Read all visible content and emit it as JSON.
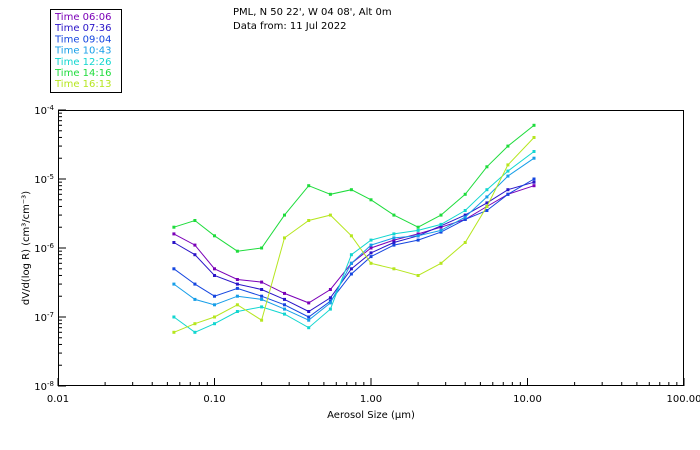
{
  "header": {
    "line1": "PML, N 50 22', W 04 08', Alt 0m",
    "line2": "Data from: 11 Jul 2022"
  },
  "legend": [
    {
      "label": "Time 06:06",
      "color": "#7b00b8"
    },
    {
      "label": "Time 07:36",
      "color": "#2a14c8"
    },
    {
      "label": "Time 09:04",
      "color": "#1546e0"
    },
    {
      "label": "Time 10:43",
      "color": "#169ee8"
    },
    {
      "label": "Time 12:26",
      "color": "#12d6d0"
    },
    {
      "label": "Time 14:16",
      "color": "#1edc3c"
    },
    {
      "label": "Time 16:13",
      "color": "#b6e61e"
    }
  ],
  "chart_data": {
    "type": "line",
    "xscale": "log",
    "yscale": "log",
    "xlim": [
      0.01,
      100
    ],
    "ylim": [
      1e-08,
      0.0001
    ],
    "xlabel": "Aerosol Size (µm)",
    "ylabel": "dV/d(log R) (cm³/cm⁻³)",
    "xticks": [
      {
        "value": 0.01,
        "label": "0.01"
      },
      {
        "value": 0.1,
        "label": "0.10"
      },
      {
        "value": 1,
        "label": "1.00"
      },
      {
        "value": 10,
        "label": "10.00"
      },
      {
        "value": 100,
        "label": "100.00"
      }
    ],
    "yticks": [
      {
        "value": 0.0001,
        "base": "10",
        "exp": "-4"
      },
      {
        "value": 1e-05,
        "base": "10",
        "exp": "-5"
      },
      {
        "value": 1e-06,
        "base": "10",
        "exp": "-6"
      },
      {
        "value": 1e-07,
        "base": "10",
        "exp": "-7"
      },
      {
        "value": 1e-08,
        "base": "10",
        "exp": "-8"
      }
    ],
    "x": [
      0.055,
      0.075,
      0.1,
      0.14,
      0.2,
      0.28,
      0.4,
      0.55,
      0.75,
      1.0,
      1.4,
      2.0,
      2.8,
      4.0,
      5.5,
      7.5,
      11.0
    ],
    "series": [
      {
        "name": "Time 06:06",
        "values": [
          1.6e-06,
          1.1e-06,
          5e-07,
          3.5e-07,
          3.2e-07,
          2.2e-07,
          1.6e-07,
          2.5e-07,
          6e-07,
          1e-06,
          1.3e-06,
          1.6e-06,
          2e-06,
          2.6e-06,
          4e-06,
          6e-06,
          8e-06
        ]
      },
      {
        "name": "Time 07:36",
        "values": [
          1.2e-06,
          8e-07,
          4e-07,
          3e-07,
          2.5e-07,
          1.8e-07,
          1.2e-07,
          1.9e-07,
          5e-07,
          8.5e-07,
          1.2e-06,
          1.5e-06,
          2.1e-06,
          3e-06,
          4.5e-06,
          7e-06,
          9e-06
        ]
      },
      {
        "name": "Time 09:04",
        "values": [
          5e-07,
          3e-07,
          2e-07,
          2.6e-07,
          2e-07,
          1.5e-07,
          1e-07,
          1.7e-07,
          4.2e-07,
          7.5e-07,
          1.1e-06,
          1.3e-06,
          1.7e-06,
          2.6e-06,
          3.5e-06,
          6e-06,
          1e-05
        ]
      },
      {
        "name": "Time 10:43",
        "values": [
          3e-07,
          1.8e-07,
          1.5e-07,
          2e-07,
          1.8e-07,
          1.3e-07,
          9e-08,
          1.6e-07,
          6e-07,
          1.1e-06,
          1.4e-06,
          1.5e-06,
          1.8e-06,
          2.8e-06,
          5.5e-06,
          1.1e-05,
          2e-05
        ]
      },
      {
        "name": "Time 12:26",
        "values": [
          1e-07,
          6e-08,
          8e-08,
          1.2e-07,
          1.4e-07,
          1.1e-07,
          7e-08,
          1.3e-07,
          8e-07,
          1.3e-06,
          1.6e-06,
          1.8e-06,
          2.2e-06,
          3.5e-06,
          7e-06,
          1.3e-05,
          2.5e-05
        ]
      },
      {
        "name": "Time 14:16",
        "values": [
          2e-06,
          2.5e-06,
          1.5e-06,
          9e-07,
          1e-06,
          3e-06,
          8e-06,
          6e-06,
          7e-06,
          5e-06,
          3e-06,
          2e-06,
          3e-06,
          6e-06,
          1.5e-05,
          3e-05,
          6e-05
        ]
      },
      {
        "name": "Time 16:13",
        "values": [
          6e-08,
          8e-08,
          1e-07,
          1.5e-07,
          9e-08,
          1.4e-06,
          2.5e-06,
          3e-06,
          1.5e-06,
          6e-07,
          5e-07,
          4e-07,
          6e-07,
          1.2e-06,
          4e-06,
          1.6e-05,
          4e-05
        ]
      }
    ]
  }
}
